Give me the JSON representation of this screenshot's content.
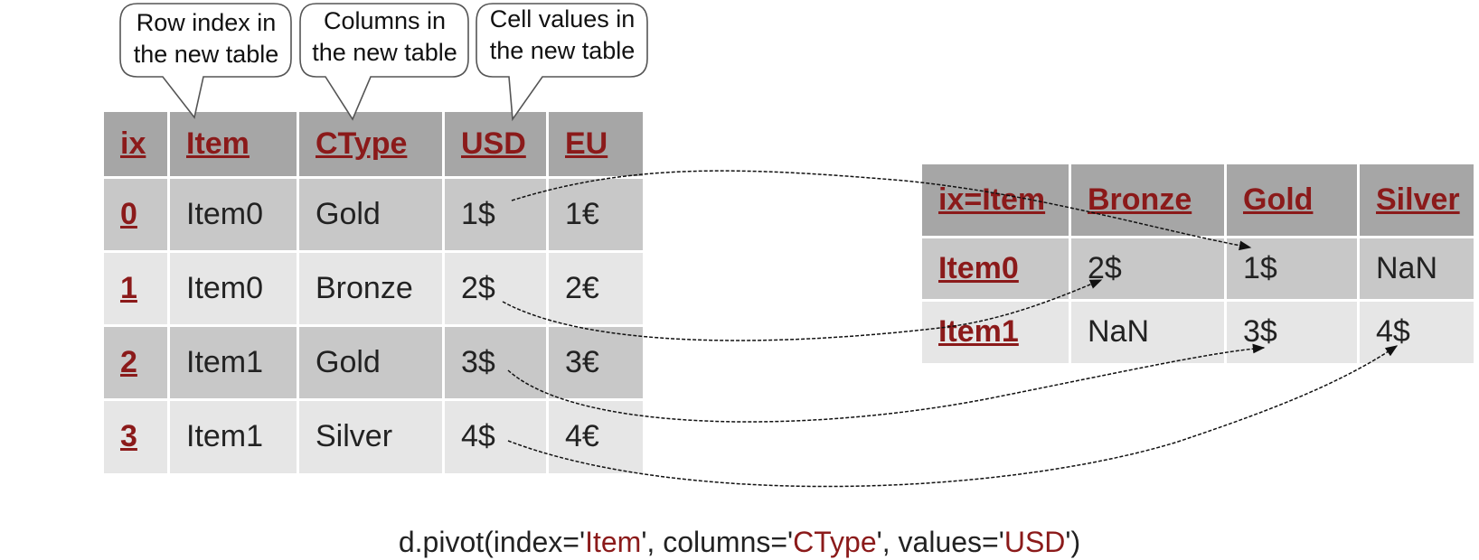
{
  "callouts": {
    "row_index": [
      "Row index in",
      "the new table"
    ],
    "columns": [
      "Columns in",
      "the new table"
    ],
    "cell_values": [
      "Cell values in",
      "the new table"
    ]
  },
  "source_table": {
    "headers": [
      "ix",
      "Item",
      "CType",
      "USD",
      "EU"
    ],
    "rows": [
      [
        "0",
        "Item0",
        "Gold",
        "1$",
        "1€"
      ],
      [
        "1",
        "Item0",
        "Bronze",
        "2$",
        "2€"
      ],
      [
        "2",
        "Item1",
        "Gold",
        "3$",
        "3€"
      ],
      [
        "3",
        "Item1",
        "Silver",
        "4$",
        "4€"
      ]
    ]
  },
  "pivot_table": {
    "headers": [
      "ix=Item",
      "Bronze",
      "Gold",
      "Silver"
    ],
    "rows": [
      [
        "Item0",
        "2$",
        "1$",
        "NaN"
      ],
      [
        "Item1",
        "NaN",
        "3$",
        "4$"
      ]
    ]
  },
  "code": {
    "prefix": "d.pivot(index='",
    "index_value": "Item",
    "sep1": "', columns='",
    "columns_value": "CType",
    "sep2": "', values='",
    "values_value": "USD",
    "suffix": "')"
  },
  "colors": {
    "header_text": "#8b1a1a",
    "header_bg": "#a6a6a6",
    "row_dark": "#c8c8c8",
    "row_light": "#e6e6e6",
    "arrow": "#111111"
  }
}
